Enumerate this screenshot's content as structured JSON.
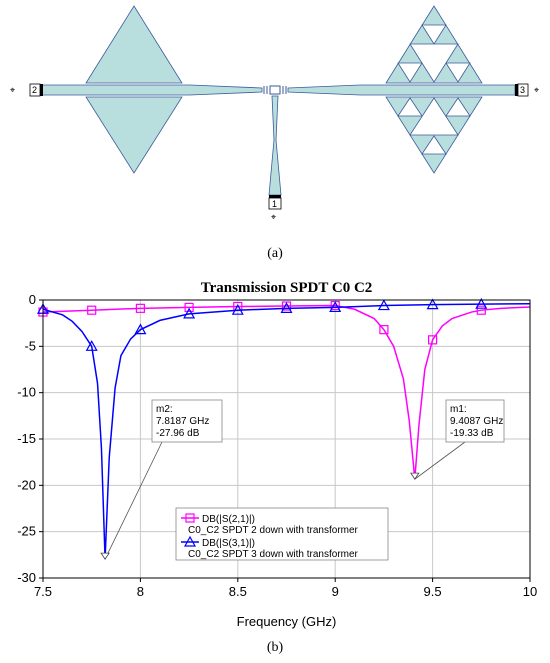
{
  "figure": {
    "caption_a": "(a)",
    "caption_b": "(b)",
    "ports": [
      "1",
      "2",
      "3"
    ]
  },
  "colors": {
    "substrate_fill": "#b9dede",
    "substrate_stroke": "#3d5a9a",
    "series_pink": "#ff00ff",
    "series_blue": "#0000ff"
  },
  "chart_data": {
    "type": "line",
    "title": "Transmission SPDT C0 C2",
    "xlabel": "Frequency (GHz)",
    "ylabel": "",
    "xlim": [
      7.5,
      10
    ],
    "ylim": [
      -30,
      0
    ],
    "xticks": [
      "7.5",
      "8",
      "8.5",
      "9",
      "9.5",
      "10"
    ],
    "yticks": [
      "0",
      "-5",
      "-10",
      "-15",
      "-20",
      "-25",
      "-30"
    ],
    "grid": true,
    "series": [
      {
        "name": "DB(|S(2,1)|)",
        "description": "C0_C2 SPDT 2 down with transformer",
        "color": "#ff00ff",
        "marker": "square",
        "x": [
          7.5,
          7.75,
          8.0,
          8.25,
          8.5,
          8.75,
          9.0,
          9.1,
          9.2,
          9.25,
          9.3,
          9.35,
          9.38,
          9.4087,
          9.43,
          9.46,
          9.5,
          9.55,
          9.6,
          9.7,
          9.75,
          9.85,
          10.0
        ],
        "y": [
          -1.3,
          -1.1,
          -0.9,
          -0.8,
          -0.7,
          -0.65,
          -0.6,
          -1.0,
          -2.0,
          -3.2,
          -5.0,
          -8.5,
          -13.0,
          -19.33,
          -13.5,
          -7.5,
          -4.3,
          -2.8,
          -2.0,
          -1.3,
          -1.1,
          -0.9,
          -0.75
        ],
        "markers_x": [
          7.5,
          7.75,
          8.0,
          8.25,
          8.5,
          8.75,
          9.0,
          9.25,
          9.5,
          9.75
        ],
        "markers_y": [
          -1.3,
          -1.1,
          -0.9,
          -0.8,
          -0.7,
          -0.65,
          -0.6,
          -3.2,
          -4.3,
          -1.1
        ]
      },
      {
        "name": "DB(|S(3,1)|)",
        "description": "C0_C2 SPDT 3 down with transformer",
        "color": "#0000ff",
        "marker": "triangle",
        "x": [
          7.5,
          7.6,
          7.65,
          7.7,
          7.75,
          7.78,
          7.8,
          7.8187,
          7.84,
          7.87,
          7.9,
          7.95,
          8.0,
          8.1,
          8.25,
          8.5,
          8.75,
          9.0,
          9.25,
          9.5,
          9.75,
          10.0
        ],
        "y": [
          -1.0,
          -1.6,
          -2.3,
          -3.4,
          -5.0,
          -9.0,
          -16.0,
          -27.96,
          -17.0,
          -9.5,
          -6.0,
          -4.2,
          -3.2,
          -2.2,
          -1.5,
          -1.1,
          -0.9,
          -0.8,
          -0.6,
          -0.5,
          -0.45,
          -0.4
        ],
        "markers_x": [
          7.5,
          7.75,
          8.0,
          8.25,
          8.5,
          8.75,
          9.0,
          9.25,
          9.5,
          9.75
        ],
        "markers_y": [
          -1.0,
          -5.0,
          -3.2,
          -1.5,
          -1.1,
          -0.9,
          -0.8,
          -0.6,
          -0.5,
          -0.45
        ]
      }
    ],
    "markers": [
      {
        "id": "m1",
        "lines": [
          "m1:",
          "9.4087 GHz",
          "-19.33 dB"
        ],
        "x": 9.4087,
        "y": -19.33
      },
      {
        "id": "m2",
        "lines": [
          "m2:",
          "7.8187 GHz",
          "-27.96 dB"
        ],
        "x": 7.8187,
        "y": -27.96
      }
    ]
  }
}
